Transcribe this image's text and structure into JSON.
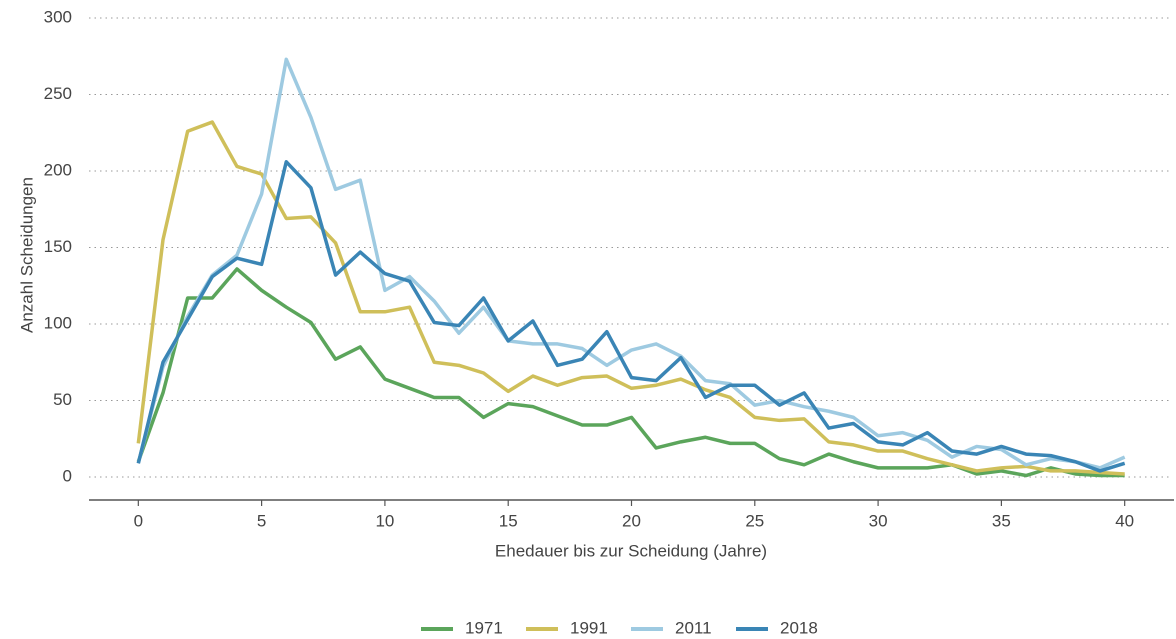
{
  "chart_data": {
    "type": "line",
    "x_label": "Ehedauer bis zur Scheidung (Jahre)",
    "y_label": "Anzahl Scheidungen",
    "x": [
      0,
      1,
      2,
      3,
      4,
      5,
      6,
      7,
      8,
      9,
      10,
      11,
      12,
      13,
      14,
      15,
      16,
      17,
      18,
      19,
      20,
      21,
      22,
      23,
      24,
      25,
      26,
      27,
      28,
      29,
      30,
      31,
      32,
      33,
      34,
      35,
      36,
      37,
      38,
      39,
      40
    ],
    "series": [
      {
        "name": "1971",
        "color": "#5ba55b",
        "values": [
          10,
          55,
          117,
          117,
          136,
          122,
          111,
          101,
          77,
          85,
          64,
          58,
          52,
          52,
          39,
          48,
          46,
          40,
          34,
          34,
          39,
          19,
          23,
          26,
          22,
          22,
          12,
          8,
          15,
          10,
          6,
          6,
          6,
          8,
          2,
          4,
          1,
          6,
          2,
          1,
          1
        ]
      },
      {
        "name": "1991",
        "color": "#cfbf5a",
        "values": [
          22,
          155,
          226,
          232,
          203,
          198,
          169,
          170,
          153,
          108,
          108,
          111,
          75,
          73,
          68,
          56,
          66,
          60,
          65,
          66,
          58,
          60,
          64,
          57,
          52,
          39,
          37,
          38,
          23,
          21,
          17,
          17,
          12,
          8,
          4,
          6,
          7,
          4,
          4,
          3,
          2
        ]
      },
      {
        "name": "2011",
        "color": "#9ecae1",
        "values": [
          9,
          72,
          105,
          132,
          145,
          185,
          273,
          235,
          188,
          194,
          122,
          131,
          115,
          94,
          111,
          89,
          87,
          87,
          84,
          73,
          83,
          87,
          79,
          63,
          61,
          47,
          50,
          46,
          43,
          39,
          27,
          29,
          24,
          13,
          20,
          18,
          8,
          12,
          10,
          6,
          13
        ]
      },
      {
        "name": "2018",
        "color": "#3a85b5",
        "values": [
          9,
          75,
          103,
          131,
          143,
          139,
          206,
          189,
          132,
          147,
          133,
          128,
          101,
          99,
          117,
          89,
          102,
          73,
          77,
          95,
          65,
          63,
          78,
          52,
          60,
          60,
          47,
          55,
          32,
          35,
          23,
          21,
          29,
          17,
          15,
          20,
          15,
          14,
          10,
          4,
          9
        ]
      }
    ],
    "xlim": [
      -2,
      42
    ],
    "ylim": [
      -15,
      300
    ],
    "xticks": [
      0,
      5,
      10,
      15,
      20,
      25,
      30,
      35,
      40
    ],
    "yticks": [
      0,
      50,
      100,
      150,
      200,
      250,
      300
    ],
    "grid": true,
    "legend": "bottom"
  }
}
